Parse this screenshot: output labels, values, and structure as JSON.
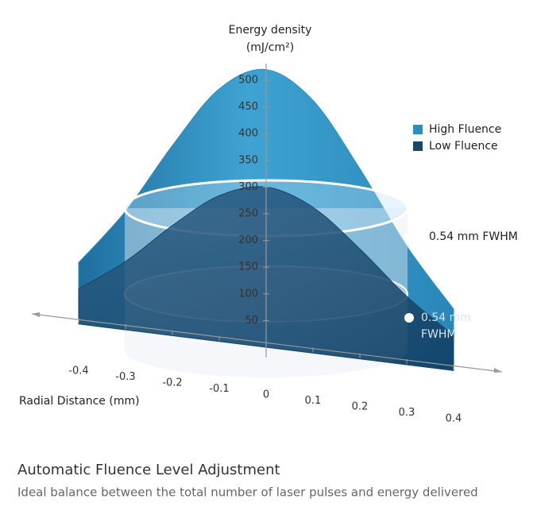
{
  "chart_data": {
    "type": "bell3d",
    "y_label": [
      "Energy density",
      "(mJ/cm²)"
    ],
    "x_label": "Radial Distance (mm)",
    "xlim": [
      -0.5,
      0.5
    ],
    "ylim": [
      0,
      550
    ],
    "xticks": [
      -0.4,
      -0.3,
      -0.2,
      -0.1,
      0,
      0.1,
      0.2,
      0.3,
      0.4
    ],
    "yticks": [
      50,
      100,
      150,
      200,
      250,
      300,
      350,
      400,
      450,
      500
    ],
    "x": [
      -0.4,
      -0.3,
      -0.2,
      -0.1,
      0,
      0.1,
      0.2,
      0.3,
      0.4
    ],
    "series": [
      {
        "name": "High Fluence",
        "color": "#2a8fc0",
        "values": [
          115,
          222,
          356,
          473,
          520,
          473,
          356,
          222,
          115
        ]
      },
      {
        "name": "Low Fluence",
        "color": "#17466b",
        "values": [
          66,
          128,
          206,
          273,
          300,
          273,
          206,
          128,
          66
        ]
      }
    ],
    "annotations": [
      "0.54 mm FWHM",
      "0.54 mm",
      "FWHM"
    ]
  },
  "caption": {
    "title": "Automatic Fluence Level Adjustment",
    "subtitle": "Ideal balance between the total number of laser pulses and energy delivered"
  }
}
